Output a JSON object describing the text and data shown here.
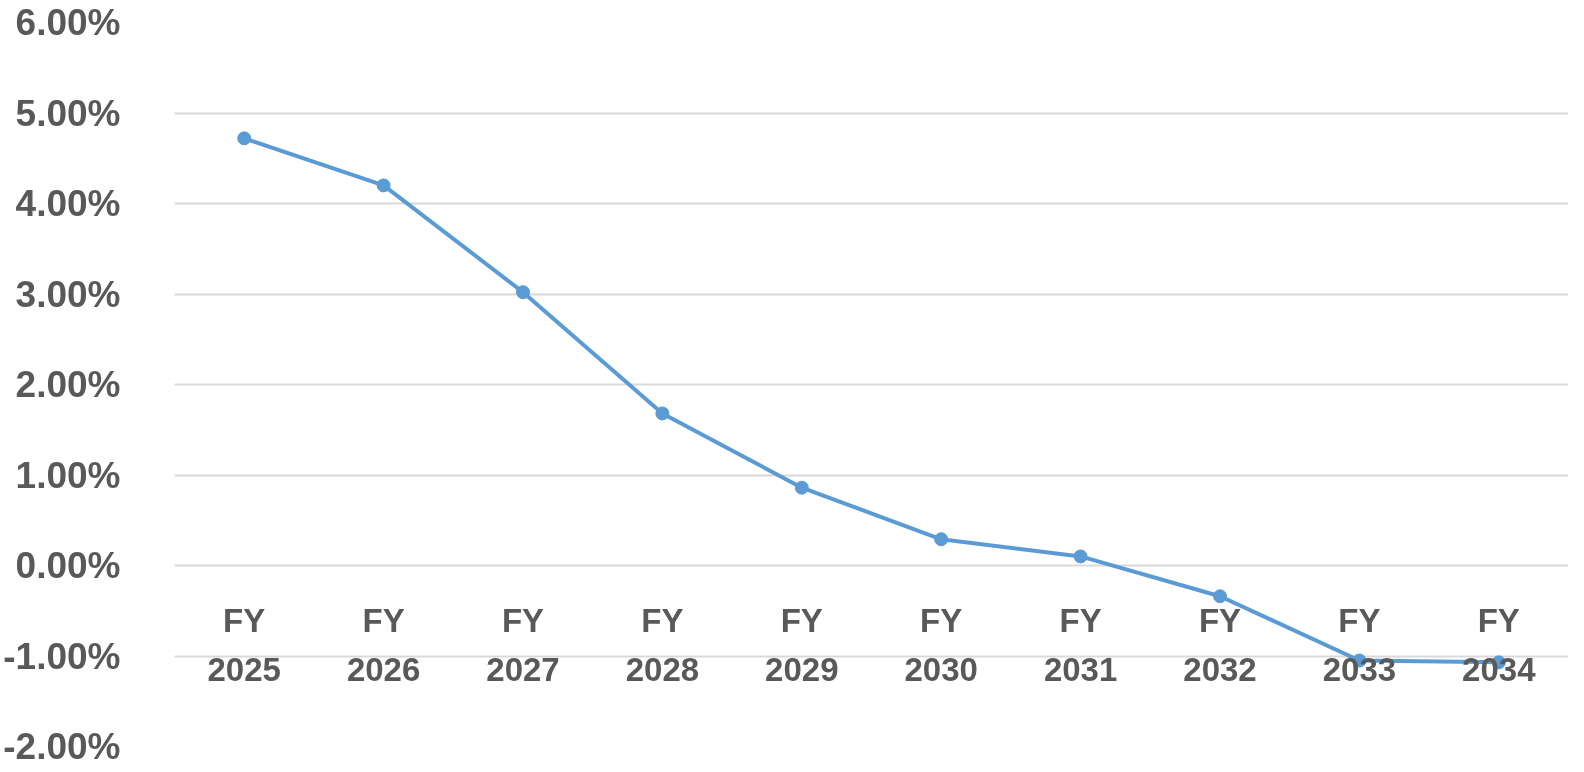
{
  "chart_data": {
    "type": "line",
    "categories": [
      "FY\n2025",
      "FY\n2026",
      "FY\n2027",
      "FY\n2028",
      "FY\n2029",
      "FY\n2030",
      "FY\n2031",
      "FY\n2032",
      "FY\n2033",
      "FY\n2034"
    ],
    "series": [
      {
        "color": "#5b9bd5",
        "values": [
          4.72,
          4.2,
          3.02,
          1.68,
          0.86,
          0.29,
          0.1,
          -0.34,
          -1.05,
          -1.07
        ]
      }
    ],
    "ylim": [
      -2,
      6
    ],
    "yticks": [
      {
        "value": -2,
        "label": "-2.00%"
      },
      {
        "value": -1,
        "label": "-1.00%"
      },
      {
        "value": 0,
        "label": "0.00%"
      },
      {
        "value": 1,
        "label": "1.00%"
      },
      {
        "value": 2,
        "label": "2.00%"
      },
      {
        "value": 3,
        "label": "3.00%"
      },
      {
        "value": 4,
        "label": "4.00%"
      },
      {
        "value": 5,
        "label": "5.00%"
      },
      {
        "value": 6,
        "label": "6.00%"
      }
    ],
    "grid": "y",
    "marker": "circle",
    "line_style": "solid"
  }
}
